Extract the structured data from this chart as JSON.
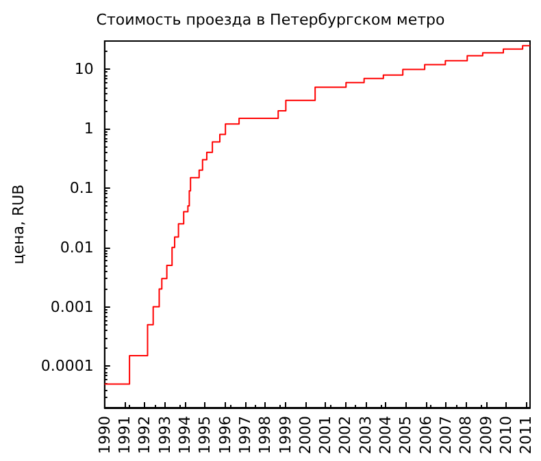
{
  "chart_data": {
    "type": "step",
    "title": "Стоимость проезда в Петербургском метро",
    "ylabel": "цена, RUB",
    "log": "y",
    "grid": false,
    "marker": "none",
    "line_style": "solid",
    "xlim": [
      1990,
      2011.2
    ],
    "xticks": [
      1990,
      1991,
      1992,
      1993,
      1994,
      1995,
      1996,
      1997,
      1998,
      1999,
      2000,
      2001,
      2002,
      2003,
      2004,
      2005,
      2006,
      2007,
      2008,
      2009,
      2010,
      2011
    ],
    "ylim": [
      2e-05,
      30
    ],
    "yticks": [
      0.0001,
      0.001,
      0.01,
      0.1,
      1,
      10
    ],
    "x": [
      1990,
      1991.24,
      1992.14,
      1992.42,
      1992.72,
      1992.85,
      1993.1,
      1993.36,
      1993.49,
      1993.68,
      1993.94,
      1994.15,
      1994.22,
      1994.28,
      1994.71,
      1994.88,
      1995.09,
      1995.37,
      1995.74,
      1996.02,
      1996.7,
      1998.65,
      1999.03,
      2000.49,
      2002.03,
      2002.93,
      2003.89,
      2004.86,
      2005.95,
      2006.98,
      2008.07,
      2008.84,
      2009.87,
      2010.83,
      2011.2
    ],
    "series": [
      {
        "color": "#ff0000",
        "values": [
          5e-05,
          0.00015,
          0.0005,
          0.001,
          0.002,
          0.003,
          0.005,
          0.01,
          0.015,
          0.025,
          0.04,
          0.05,
          0.09,
          0.15,
          0.2,
          0.3,
          0.4,
          0.6,
          0.8,
          1.2,
          1.5,
          2,
          3,
          5,
          6,
          7,
          8,
          10,
          12,
          14,
          17,
          19,
          22,
          25,
          25
        ]
      }
    ]
  }
}
